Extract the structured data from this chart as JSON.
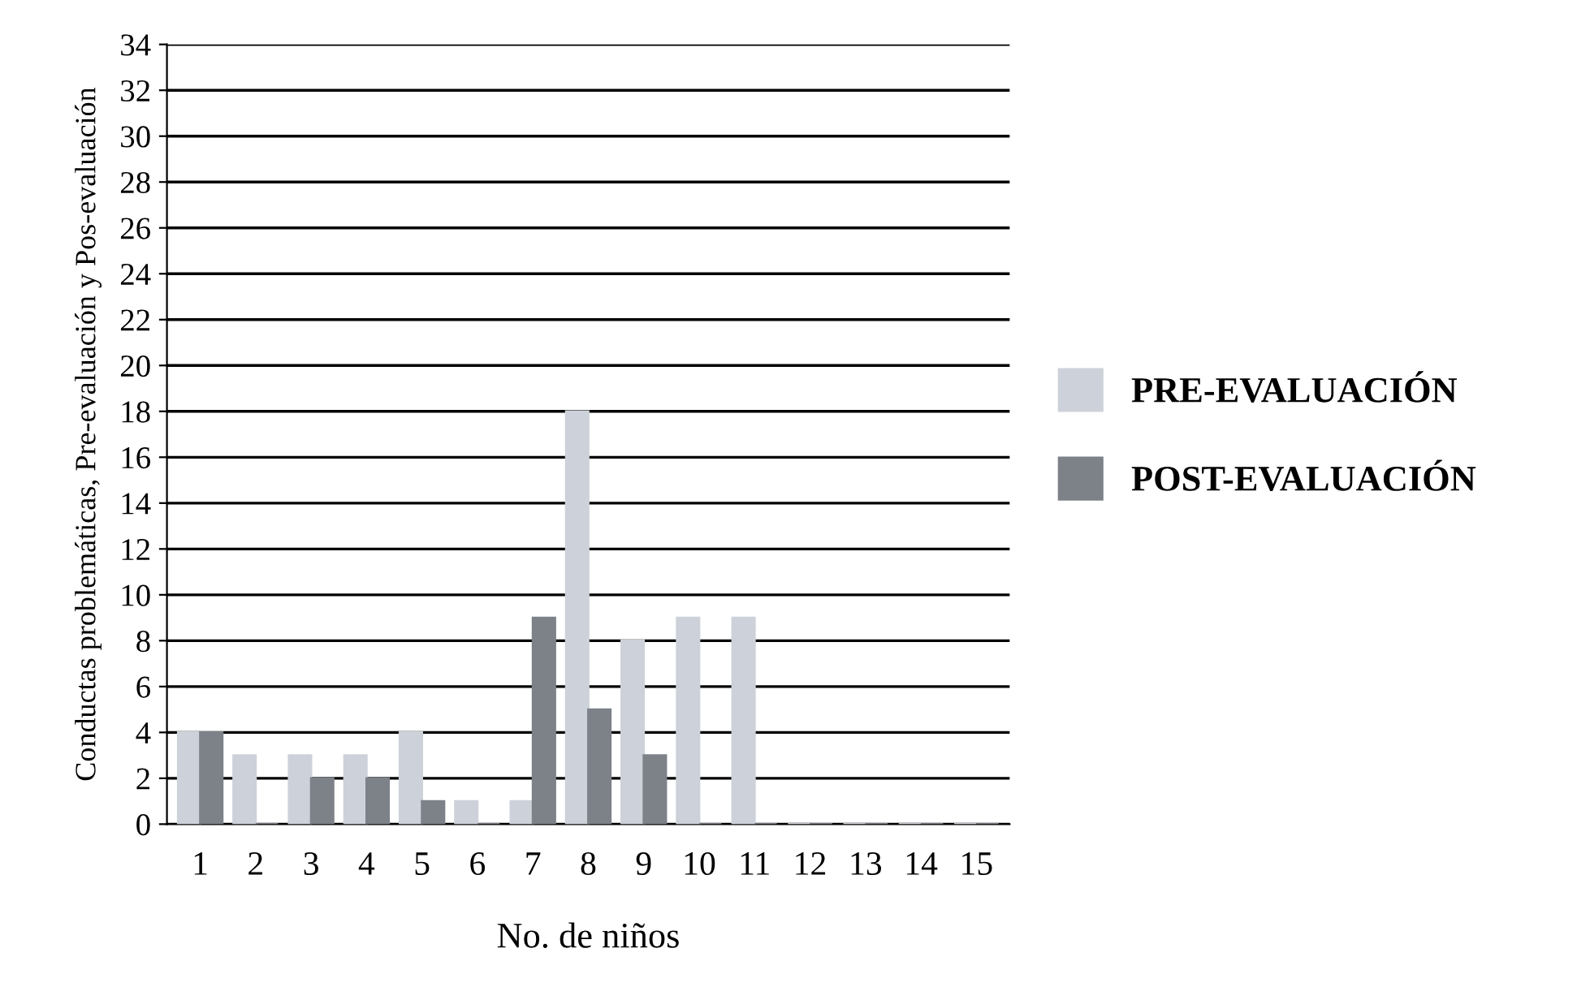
{
  "chart_data": {
    "type": "bar",
    "xlabel": "No. de niños",
    "ylabel": "Conductas problemáticas, Pre-evaluación y Pos-evaluación",
    "categories": [
      "1",
      "2",
      "3",
      "4",
      "5",
      "6",
      "7",
      "8",
      "9",
      "10",
      "11",
      "12",
      "13",
      "14",
      "15"
    ],
    "series": [
      {
        "name": "PRE-EVALUACIÓN",
        "color": "#cdd1d9",
        "values": [
          4,
          3,
          3,
          3,
          4,
          1,
          1,
          18,
          8,
          9,
          9,
          0,
          0,
          0,
          0
        ]
      },
      {
        "name": "POST-EVALUACIÓN",
        "color": "#7d8289",
        "values": [
          4,
          0,
          2,
          2,
          1,
          0,
          9,
          5,
          3,
          0,
          0,
          0,
          0,
          0,
          0
        ]
      }
    ],
    "ylim": [
      0,
      34
    ],
    "yticks": [
      0,
      2,
      4,
      6,
      8,
      10,
      12,
      14,
      16,
      18,
      20,
      22,
      24,
      26,
      28,
      30,
      32,
      34
    ],
    "grid": "y",
    "legend": "right"
  }
}
